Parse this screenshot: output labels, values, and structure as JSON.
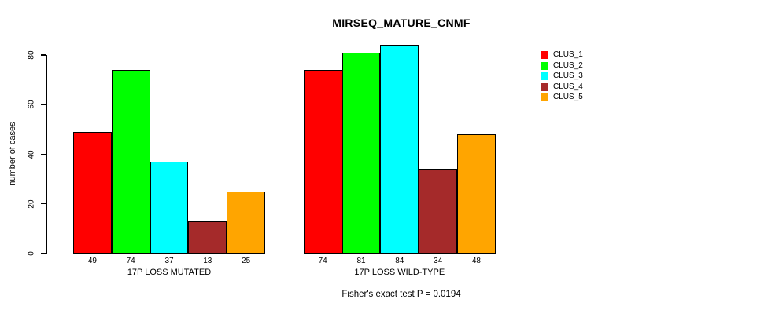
{
  "chart_data": {
    "type": "bar",
    "title": "MIRSEQ_MATURE_CNMF",
    "ylabel": "number of cases",
    "xlabel": "",
    "ylim": [
      0,
      84
    ],
    "yticks": [
      0,
      20,
      40,
      60,
      80
    ],
    "grid": false,
    "legend_position": "right-of-plot",
    "categories": [
      "17P LOSS MUTATED",
      "17P LOSS WILD-TYPE"
    ],
    "series": [
      {
        "name": "CLUS_1",
        "color": "#FF0000",
        "values": [
          49,
          74
        ]
      },
      {
        "name": "CLUS_2",
        "color": "#00FF00",
        "values": [
          74,
          81
        ]
      },
      {
        "name": "CLUS_3",
        "color": "#00FFFF",
        "values": [
          37,
          84
        ]
      },
      {
        "name": "CLUS_4",
        "color": "#A52A2A",
        "values": [
          13,
          34
        ]
      },
      {
        "name": "CLUS_5",
        "color": "#FFA500",
        "values": [
          25,
          48
        ]
      }
    ],
    "bar_value_labels_shown": true,
    "footnote": "Fisher's exact test P = 0.0194",
    "background": "#FFFFFF",
    "axis_color": "#000000"
  }
}
